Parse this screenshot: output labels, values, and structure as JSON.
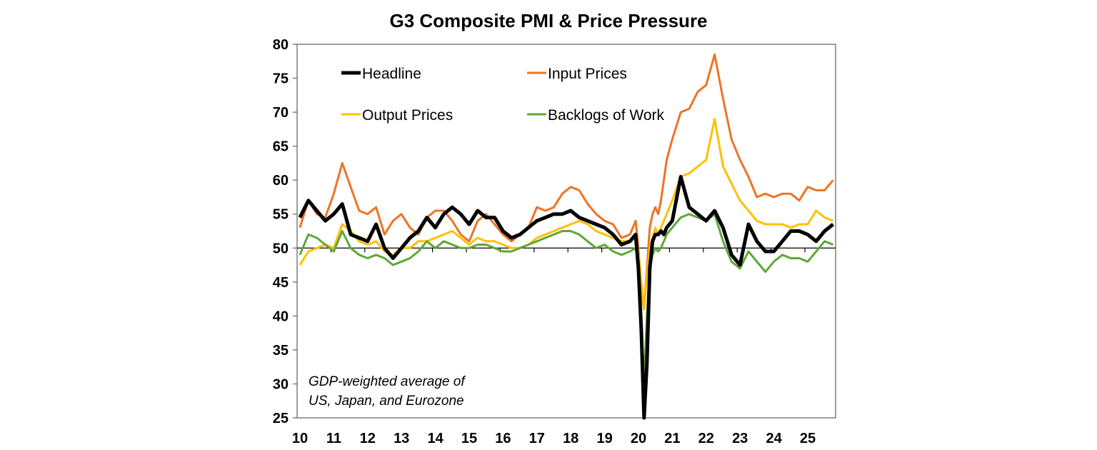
{
  "chart_data": {
    "type": "line",
    "title": "G3 Composite PMI & Price Pressure",
    "annotation": [
      "GDP-weighted average of",
      "US, Japan, and Eurozone"
    ],
    "ylim": [
      25,
      80
    ],
    "yticks": [
      25,
      30,
      35,
      40,
      45,
      50,
      55,
      60,
      65,
      70,
      75,
      80
    ],
    "xlim": [
      "2010-01",
      "2025-11"
    ],
    "xtick_labels": [
      "10",
      "11",
      "12",
      "13",
      "14",
      "15",
      "16",
      "17",
      "18",
      "19",
      "20",
      "21",
      "22",
      "23",
      "24",
      "25"
    ],
    "reference_line": 50,
    "grid": false,
    "legend_placement": "top-left, two columns",
    "x": [
      "2010-02",
      "2010-05",
      "2010-08",
      "2010-11",
      "2011-02",
      "2011-05",
      "2011-08",
      "2011-11",
      "2012-02",
      "2012-05",
      "2012-08",
      "2012-11",
      "2013-02",
      "2013-05",
      "2013-08",
      "2013-11",
      "2014-02",
      "2014-05",
      "2014-08",
      "2014-11",
      "2015-02",
      "2015-05",
      "2015-08",
      "2015-11",
      "2016-02",
      "2016-05",
      "2016-08",
      "2016-11",
      "2017-02",
      "2017-05",
      "2017-08",
      "2017-11",
      "2018-02",
      "2018-05",
      "2018-08",
      "2018-11",
      "2019-02",
      "2019-05",
      "2019-08",
      "2019-11",
      "2020-01",
      "2020-02",
      "2020-03",
      "2020-04",
      "2020-05",
      "2020-06",
      "2020-07",
      "2020-08",
      "2020-09",
      "2020-10",
      "2020-11",
      "2020-12",
      "2021-02",
      "2021-05",
      "2021-08",
      "2021-11",
      "2022-02",
      "2022-05",
      "2022-08",
      "2022-11",
      "2023-02",
      "2023-05",
      "2023-08",
      "2023-11",
      "2024-02",
      "2024-05",
      "2024-08",
      "2024-11",
      "2025-02",
      "2025-05",
      "2025-08",
      "2025-11"
    ],
    "series": [
      {
        "name": "Headline",
        "color": "#000000",
        "values": [
          54.5,
          57,
          55.5,
          54,
          55,
          56.5,
          52,
          51.5,
          51,
          53.5,
          50,
          48.5,
          50,
          51.5,
          52.5,
          54.5,
          53,
          55,
          56,
          55,
          53.5,
          55.5,
          54.5,
          54.5,
          52.5,
          51.5,
          52,
          53,
          54,
          54.5,
          55,
          55,
          55.5,
          54.5,
          54,
          53.5,
          53,
          52,
          50.5,
          51,
          52,
          47,
          38,
          25,
          33,
          47,
          51,
          52,
          52,
          52.5,
          52,
          53,
          54,
          60.5,
          56,
          55,
          54,
          55.5,
          53,
          49,
          47.5,
          53.5,
          51,
          49.5,
          49.5,
          51,
          52.5,
          52.5,
          52,
          51,
          52.5,
          53.5
        ]
      },
      {
        "name": "Input Prices",
        "color": "#ED7425",
        "values": [
          53,
          57,
          55,
          54.5,
          58,
          62.5,
          59,
          55.5,
          55,
          56,
          52,
          54,
          55,
          53,
          52,
          54.5,
          55.5,
          55.5,
          54,
          52,
          51,
          54,
          55,
          53.5,
          52,
          51,
          52,
          53,
          56,
          55.5,
          56,
          58,
          59,
          58.5,
          56.5,
          55,
          54,
          53.5,
          51.5,
          52,
          54,
          50,
          44,
          41,
          47,
          53,
          55,
          56,
          55,
          57,
          60,
          63,
          66,
          70,
          70.5,
          73,
          74,
          78.5,
          72,
          66,
          63,
          60.5,
          57.5,
          58,
          57.5,
          58,
          58,
          57,
          59,
          58.5,
          58.5,
          60
        ]
      },
      {
        "name": "Output Prices",
        "color": "#FFC000",
        "values": [
          47.5,
          49.5,
          50,
          50.5,
          50,
          53.5,
          52.5,
          51,
          50.5,
          51,
          49.5,
          49,
          50,
          50,
          51,
          51,
          51.5,
          52,
          52.5,
          51.5,
          50.5,
          51.5,
          51,
          51,
          50.5,
          50,
          50,
          50.5,
          51.5,
          52,
          52.5,
          53,
          53.5,
          54,
          53.5,
          52.5,
          52,
          51.5,
          51,
          51,
          51.5,
          49.5,
          45,
          41,
          46,
          50,
          51.5,
          53,
          52,
          53,
          54,
          55,
          57,
          60.5,
          61,
          62,
          63,
          69,
          62,
          59.5,
          57,
          55.5,
          54,
          53.5,
          53.5,
          53.5,
          53,
          53.5,
          53.5,
          55.5,
          54.5,
          54
        ]
      },
      {
        "name": "Backlogs of Work",
        "color": "#5FA737",
        "values": [
          49,
          52,
          51.5,
          50.5,
          49.5,
          52.5,
          50,
          49,
          48.5,
          49,
          48.5,
          47.5,
          48,
          48.5,
          49.5,
          51,
          50,
          51,
          50.5,
          50,
          50,
          50.5,
          50.5,
          50,
          49.5,
          49.5,
          50,
          50.5,
          51,
          51.5,
          52,
          52.5,
          52.5,
          52,
          51,
          50,
          50.5,
          49.5,
          49,
          49.5,
          50,
          48,
          38,
          31,
          40,
          47,
          49,
          50,
          49.5,
          50,
          51,
          52,
          53,
          54.5,
          55,
          54.5,
          54,
          55,
          51,
          48,
          47,
          49.5,
          48,
          46.5,
          48,
          49,
          48.5,
          48.5,
          48,
          49.5,
          51,
          50.5
        ]
      }
    ]
  }
}
